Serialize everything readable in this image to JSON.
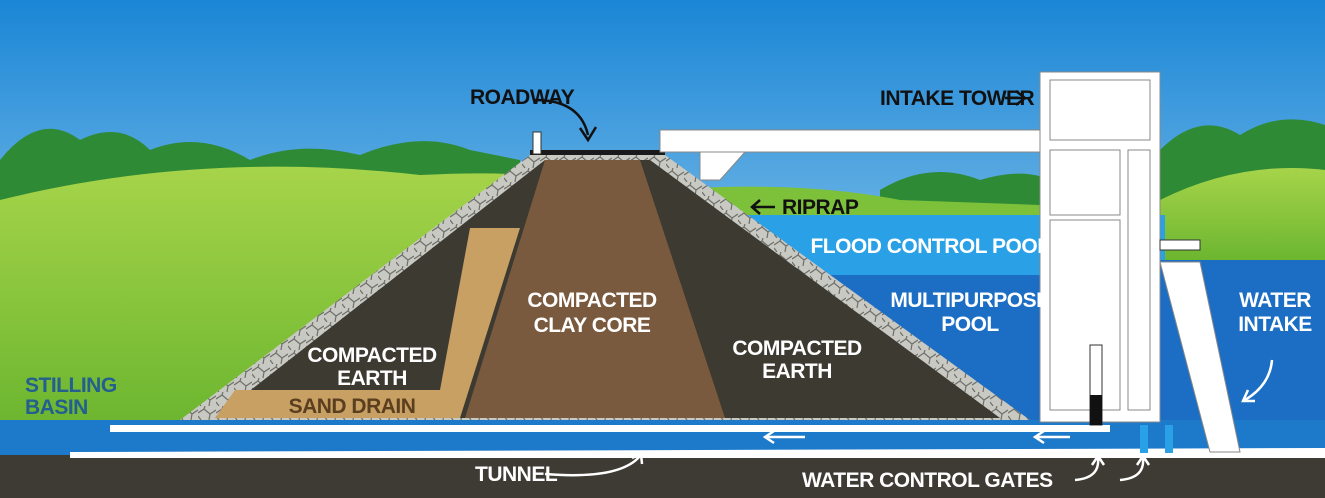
{
  "labels": [
    {
      "lines": [
        "ROADWAY"
      ]
    },
    {
      "lines": [
        "INTAKE TOWER"
      ]
    },
    {
      "lines": [
        "RIPRAP"
      ]
    },
    {
      "lines": [
        "FLOOD CONTROL POOL"
      ]
    },
    {
      "lines": [
        "MULTIPURPOSE",
        "POOL"
      ]
    },
    {
      "lines": [
        "WATER",
        "INTAKE"
      ]
    },
    {
      "lines": [
        "COMPACTED",
        "CLAY CORE"
      ]
    },
    {
      "lines": [
        "COMPACTED",
        "EARTH"
      ]
    },
    {
      "lines": [
        "COMPACTED",
        "EARTH"
      ]
    },
    {
      "lines": [
        "SAND DRAIN"
      ]
    },
    {
      "lines": [
        "STILLING",
        "BASIN"
      ]
    },
    {
      "lines": [
        "TUNNEL"
      ]
    },
    {
      "lines": [
        "WATER CONTROL GATES"
      ]
    }
  ]
}
